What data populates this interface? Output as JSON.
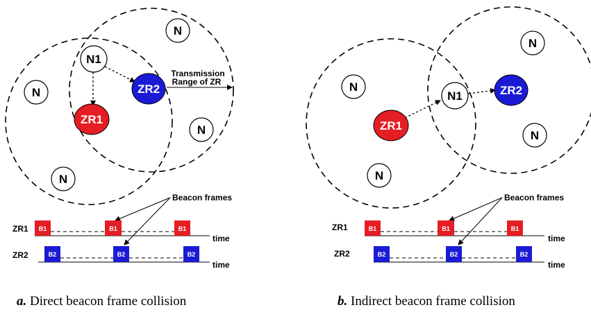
{
  "colors": {
    "zr1": "#e41e24",
    "zr2": "#1b1bd6",
    "node": "#ffffff",
    "stroke": "#000000"
  },
  "panel_a": {
    "caption_letter": "a.",
    "caption_text": "Direct beacon frame collision",
    "nodes": {
      "n_top": "N",
      "n_left": "N",
      "n_right": "N",
      "n_bottom": "N",
      "n1": "N1",
      "zr1": "ZR1",
      "zr2": "ZR2"
    },
    "range_label_line1": "Transmission",
    "range_label_line2": "Range of ZR",
    "beacon_label": "Beacon frames",
    "row1_label": "ZR1",
    "row2_label": "ZR2",
    "frame1_label": "B1",
    "frame2_label": "B2",
    "time_label": "time"
  },
  "panel_b": {
    "caption_letter": "b.",
    "caption_text": "Indirect beacon frame collision",
    "nodes": {
      "n_topright": "N",
      "n_left": "N",
      "n_right": "N",
      "n_bottom": "N",
      "n1": "N1",
      "zr1": "ZR1",
      "zr2": "ZR2"
    },
    "beacon_label": "Beacon frames",
    "row1_label": "ZR1",
    "row2_label": "ZR2",
    "frame1_label": "B1",
    "frame2_label": "B2",
    "time_label": "time"
  }
}
